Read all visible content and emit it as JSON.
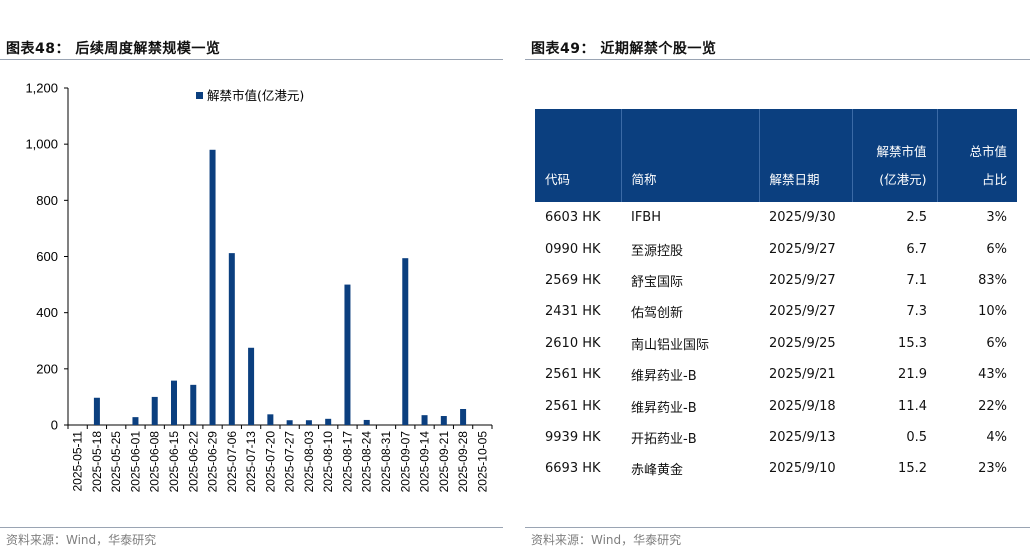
{
  "left": {
    "title": "图表48：  后续周度解禁规模一览",
    "source": "资料来源：Wind，华泰研究"
  },
  "right": {
    "title": "图表49：  近期解禁个股一览",
    "source": "资料来源：Wind，华泰研究",
    "table": {
      "headers": [
        {
          "line1": "",
          "line2": "代码"
        },
        {
          "line1": "",
          "line2": "简称"
        },
        {
          "line1": "",
          "line2": "解禁日期"
        },
        {
          "line1": "解禁市值",
          "line2": "(亿港元)"
        },
        {
          "line1": "总市值",
          "line2": "占比"
        }
      ],
      "rows": [
        [
          "6603 HK",
          "IFBH",
          "2025/9/30",
          "2.5",
          "3%"
        ],
        [
          "0990 HK",
          "至源控股",
          "2025/9/27",
          "6.7",
          "6%"
        ],
        [
          "2569 HK",
          "舒宝国际",
          "2025/9/27",
          "7.1",
          "83%"
        ],
        [
          "2431 HK",
          "佑驾创新",
          "2025/9/27",
          "7.3",
          "10%"
        ],
        [
          "2610 HK",
          "南山铝业国际",
          "2025/9/25",
          "15.3",
          "6%"
        ],
        [
          "2561 HK",
          "维昇药业-B",
          "2025/9/21",
          "21.9",
          "43%"
        ],
        [
          "2561 HK",
          "维昇药业-B",
          "2025/9/18",
          "11.4",
          "22%"
        ],
        [
          "9939 HK",
          "开拓药业-B",
          "2025/9/13",
          "0.5",
          "4%"
        ],
        [
          "6693 HK",
          "赤峰黄金",
          "2025/9/10",
          "15.2",
          "23%"
        ]
      ]
    }
  },
  "colors": {
    "bar": "#0b3f7f",
    "header_bg": "#0b3f7f",
    "rule": "#9aa4b3"
  },
  "chart_data": {
    "type": "bar",
    "categories": [
      "2025-05-11",
      "2025-05-18",
      "2025-05-25",
      "2025-06-01",
      "2025-06-08",
      "2025-06-15",
      "2025-06-22",
      "2025-06-29",
      "2025-07-06",
      "2025-07-13",
      "2025-07-20",
      "2025-07-27",
      "2025-08-03",
      "2025-08-10",
      "2025-08-17",
      "2025-08-24",
      "2025-08-31",
      "2025-09-07",
      "2025-09-14",
      "2025-09-21",
      "2025-09-28",
      "2025-10-05"
    ],
    "series": [
      {
        "name": "解禁市值(亿港元)",
        "values": [
          0,
          97,
          0,
          28,
          100,
          158,
          143,
          980,
          612,
          275,
          38,
          17,
          17,
          22,
          500,
          18,
          0,
          594,
          35,
          32,
          57,
          0
        ]
      }
    ],
    "yticks": [
      "0",
      "200",
      "400",
      "600",
      "800",
      "1,000",
      "1,200"
    ],
    "ylim": [
      0,
      1200
    ],
    "legend": "top",
    "grid": false
  }
}
